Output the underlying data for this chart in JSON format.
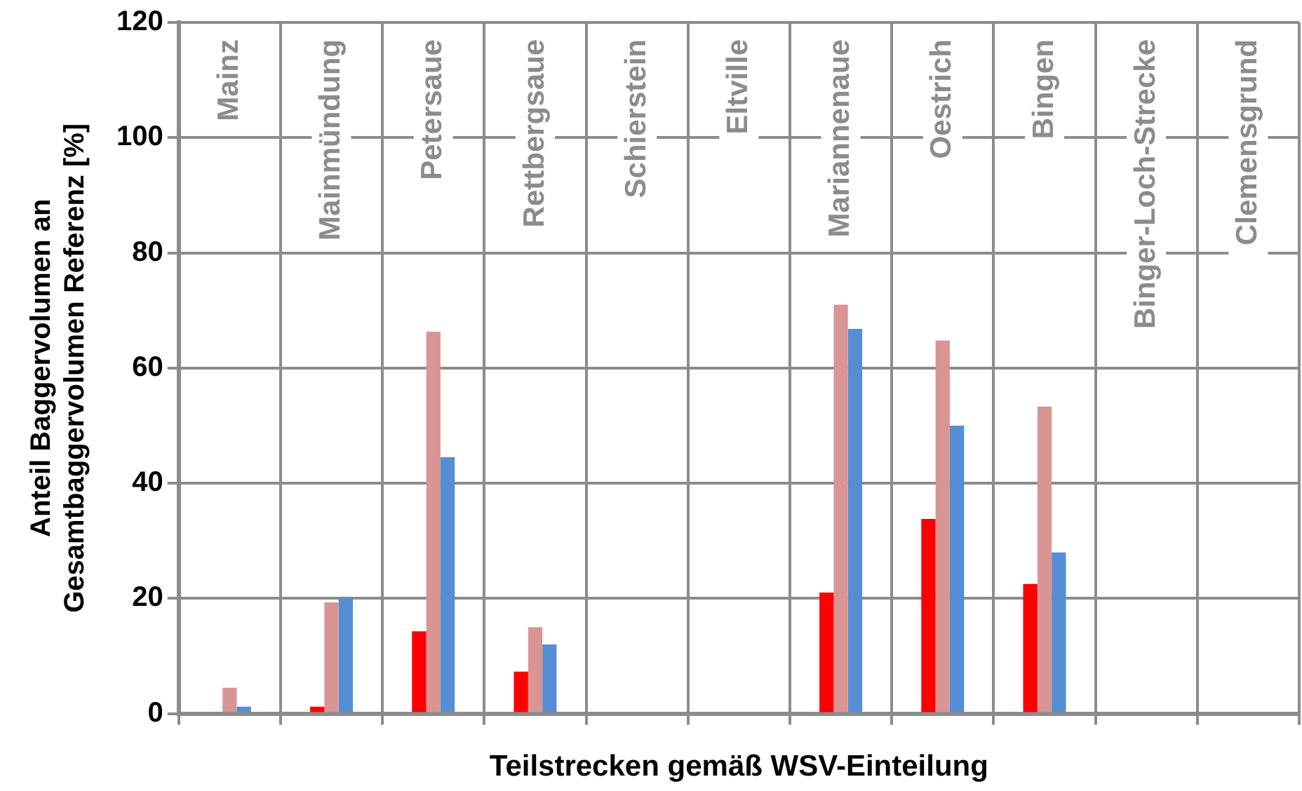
{
  "chart_data": {
    "type": "bar",
    "xlabel": "Teilstrecken gemäß WSV-Einteilung",
    "ylabel": "Anteil Baggervolumen an\nGesamtbaggervolumen Referenz [%]",
    "categories": [
      "Mainz",
      "Mainmündung",
      "Petersaue",
      "Rettbergsaue",
      "Schierstein",
      "Eltville",
      "Mariannenaue",
      "Oestrich",
      "Bingen",
      "Binger-Loch-Strecke",
      "Clemensgrund"
    ],
    "series": [
      {
        "color": "#ff0000",
        "values": [
          0,
          1.2,
          14.3,
          7.3,
          0,
          0,
          21,
          33.8,
          22.5,
          0,
          0
        ]
      },
      {
        "color": "#d99594",
        "values": [
          4.5,
          19.3,
          66.3,
          15,
          0,
          0,
          71,
          64.8,
          53.3,
          0,
          0
        ]
      },
      {
        "color": "#558ed5",
        "values": [
          1.2,
          20,
          44.5,
          12,
          0,
          0,
          66.8,
          50,
          28,
          0,
          0
        ]
      }
    ],
    "ylim": [
      0,
      120
    ],
    "yticks": [
      0,
      20,
      40,
      60,
      80,
      100,
      120
    ],
    "grid": true,
    "legend": false
  }
}
